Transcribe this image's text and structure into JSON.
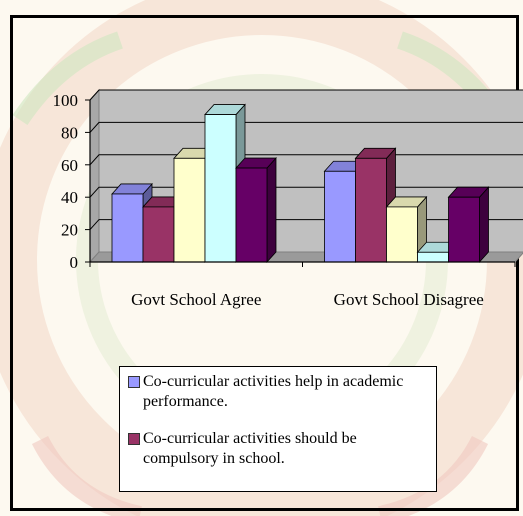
{
  "chart_data": {
    "type": "bar",
    "categories": [
      "Govt School Agree",
      "Govt School Disagree"
    ],
    "series": [
      {
        "name": "Co-curricular activities help in academic performance.",
        "values": [
          42,
          56
        ],
        "color": "#9999ff"
      },
      {
        "name": "Co-curricular activities should be compulsory in school.",
        "values": [
          34,
          64
        ],
        "color": "#993366"
      },
      {
        "values": [
          64,
          34
        ],
        "color": "#ffffcc"
      },
      {
        "values": [
          91,
          6
        ],
        "color": "#ccffff"
      },
      {
        "values": [
          58,
          40
        ],
        "color": "#660066"
      }
    ],
    "yticks": [
      0,
      20,
      40,
      60,
      80,
      100
    ],
    "ylim": [
      0,
      100
    ],
    "grid": true,
    "legend_position": "bottom",
    "title": "",
    "xlabel": "",
    "ylabel": ""
  },
  "colors": {
    "wall": "#c0c0c0",
    "floor": "#9a9a9a",
    "frame": "#000000"
  }
}
